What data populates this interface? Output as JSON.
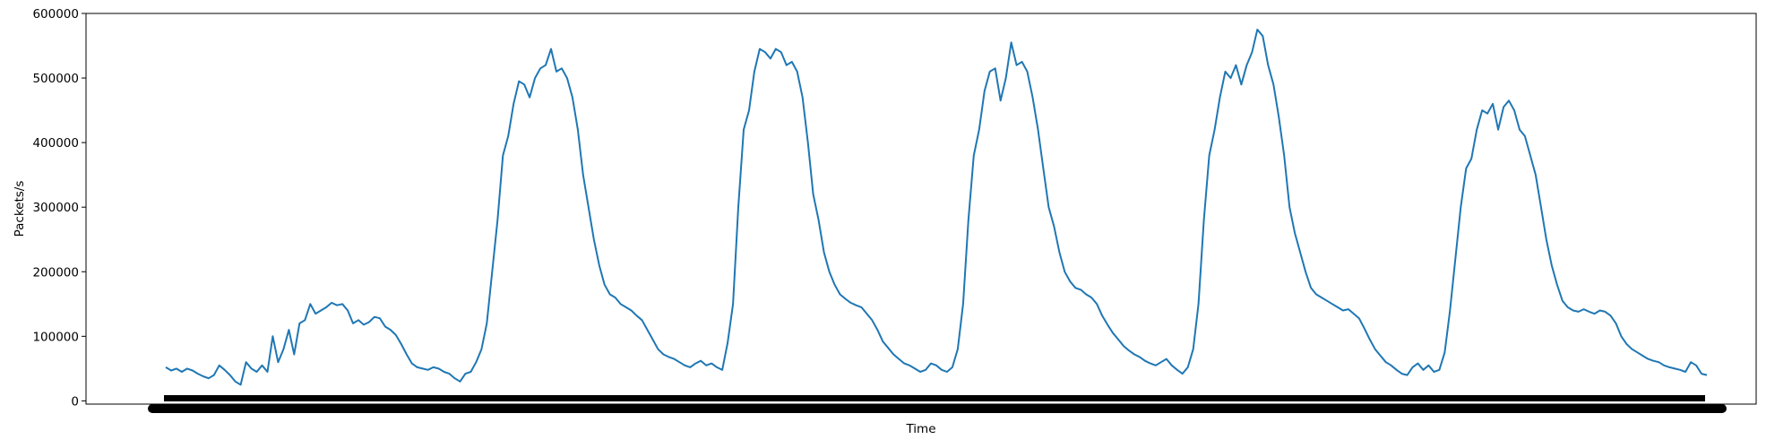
{
  "chart_data": {
    "type": "line",
    "title": "",
    "xlabel": "Time",
    "ylabel": "Packets/s",
    "ylim": [
      -5000,
      600000
    ],
    "yticks": [
      0,
      100000,
      200000,
      300000,
      400000,
      500000,
      600000
    ],
    "ytick_labels": [
      "0",
      "100000",
      "200000",
      "300000",
      "400000",
      "500000",
      "600000"
    ],
    "xtick_labels_legible": false,
    "grid": false,
    "legend": "none",
    "colors": {
      "series": "#1f77b4",
      "axes": "#000000",
      "background": "#ffffff"
    },
    "series": [
      {
        "index": [
          0,
          6,
          12,
          18,
          24,
          30,
          36,
          42,
          48,
          54,
          60,
          66,
          72,
          78,
          84,
          90,
          96,
          102,
          108,
          114,
          120,
          126,
          132,
          138,
          144,
          150,
          156,
          162,
          168,
          174,
          180,
          186,
          192,
          198,
          204,
          210,
          216,
          222,
          228,
          234,
          240,
          246,
          252,
          258,
          264,
          270,
          276,
          282,
          288,
          294,
          300,
          306,
          312,
          318,
          324,
          330,
          336,
          342,
          348,
          354,
          360,
          366,
          372,
          378,
          384,
          390,
          396,
          402,
          408,
          414,
          420,
          426,
          432,
          438,
          444,
          450,
          456,
          462,
          468,
          474,
          480,
          486,
          492,
          498,
          504,
          510,
          516,
          522,
          528,
          534,
          540,
          546,
          552,
          558,
          564,
          570,
          576,
          582,
          588,
          594,
          600,
          606,
          612,
          618,
          624,
          630,
          636,
          642,
          648,
          654,
          660,
          666,
          672,
          678,
          684,
          690,
          696,
          702,
          708,
          714,
          720,
          726,
          732,
          738,
          744,
          750,
          756,
          762,
          768,
          774,
          780,
          786,
          792,
          798,
          804,
          810,
          816,
          822,
          828,
          834,
          840,
          846,
          852,
          858,
          864,
          870,
          876,
          882,
          888,
          894,
          900,
          906,
          912,
          918,
          924,
          930,
          936,
          942,
          948,
          954,
          960,
          966,
          972,
          978,
          984,
          990,
          996,
          1002,
          1008,
          1014,
          1020,
          1026,
          1032,
          1038,
          1044,
          1050,
          1056,
          1062,
          1068,
          1074,
          1080,
          1086,
          1092,
          1098,
          1104,
          1110,
          1116,
          1122,
          1128,
          1134,
          1140,
          1146,
          1152,
          1158,
          1164,
          1170,
          1176,
          1182,
          1188,
          1194,
          1200,
          1206,
          1212,
          1218,
          1224,
          1230,
          1236,
          1242,
          1248,
          1254,
          1260,
          1266,
          1272,
          1278,
          1284,
          1290,
          1296,
          1302,
          1308,
          1314,
          1320,
          1326,
          1332,
          1338,
          1344,
          1350,
          1356,
          1362,
          1368,
          1374,
          1380,
          1386,
          1392,
          1398,
          1404,
          1410,
          1416,
          1422,
          1428,
          1434,
          1440,
          1446,
          1452,
          1458,
          1464,
          1470,
          1476,
          1482,
          1488,
          1494,
          1500,
          1506,
          1512,
          1518,
          1524,
          1530,
          1536,
          1542,
          1548,
          1554,
          1560,
          1566,
          1572,
          1578,
          1584,
          1590,
          1596,
          1602,
          1608,
          1614,
          1620,
          1626,
          1632,
          1638,
          1644,
          1650,
          1656,
          1662,
          1668,
          1674,
          1680,
          1686,
          1692,
          1698,
          1704,
          1710,
          1716,
          1722,
          1728
        ],
        "values": [
          52000,
          47000,
          50000,
          45000,
          50000,
          47000,
          42000,
          38000,
          35000,
          40000,
          55000,
          48000,
          40000,
          30000,
          25000,
          60000,
          50000,
          45000,
          55000,
          45000,
          100000,
          60000,
          80000,
          110000,
          72000,
          120000,
          125000,
          150000,
          135000,
          140000,
          145000,
          152000,
          148000,
          150000,
          140000,
          120000,
          125000,
          118000,
          122000,
          130000,
          128000,
          115000,
          110000,
          102000,
          88000,
          72000,
          58000,
          52000,
          50000,
          48000,
          52000,
          50000,
          45000,
          42000,
          35000,
          30000,
          42000,
          45000,
          60000,
          80000,
          120000,
          200000,
          280000,
          380000,
          410000,
          460000,
          495000,
          490000,
          470000,
          500000,
          515000,
          520000,
          545000,
          510000,
          515000,
          500000,
          470000,
          420000,
          350000,
          300000,
          250000,
          210000,
          180000,
          165000,
          160000,
          150000,
          145000,
          140000,
          132000,
          125000,
          110000,
          95000,
          80000,
          72000,
          68000,
          65000,
          60000,
          55000,
          52000,
          58000,
          62000,
          55000,
          58000,
          52000,
          48000,
          90000,
          150000,
          300000,
          420000,
          450000,
          510000,
          545000,
          540000,
          530000,
          545000,
          540000,
          520000,
          525000,
          510000,
          470000,
          400000,
          320000,
          280000,
          230000,
          200000,
          180000,
          165000,
          158000,
          152000,
          148000,
          145000,
          135000,
          125000,
          110000,
          92000,
          82000,
          72000,
          65000,
          58000,
          55000,
          50000,
          45000,
          48000,
          58000,
          55000,
          48000,
          45000,
          52000,
          80000,
          150000,
          280000,
          380000,
          420000,
          480000,
          510000,
          515000,
          465000,
          500000,
          555000,
          520000,
          525000,
          510000,
          470000,
          420000,
          360000,
          300000,
          270000,
          230000,
          200000,
          185000,
          175000,
          172000,
          165000,
          160000,
          150000,
          132000,
          118000,
          105000,
          95000,
          85000,
          78000,
          72000,
          68000,
          62000,
          58000,
          55000,
          60000,
          65000,
          55000,
          48000,
          42000,
          52000,
          80000,
          150000,
          280000,
          380000,
          420000,
          470000,
          510000,
          500000,
          520000,
          490000,
          520000,
          540000,
          575000,
          565000,
          520000,
          490000,
          440000,
          380000,
          300000,
          260000,
          230000,
          200000,
          175000,
          165000,
          160000,
          155000,
          150000,
          145000,
          140000,
          142000,
          135000,
          128000,
          112000,
          95000,
          80000,
          70000,
          60000,
          55000,
          48000,
          42000,
          40000,
          52000,
          58000,
          48000,
          55000,
          45000,
          48000,
          75000,
          140000,
          220000,
          300000,
          360000,
          375000,
          420000,
          450000,
          445000,
          460000,
          420000,
          455000,
          465000,
          450000,
          420000,
          410000,
          380000,
          350000,
          300000,
          250000,
          210000,
          180000,
          155000,
          145000,
          140000,
          138000,
          142000,
          138000,
          135000,
          140000,
          138000,
          132000,
          120000,
          100000,
          88000,
          80000,
          75000,
          70000,
          65000,
          62000,
          60000,
          55000,
          52000,
          50000,
          48000,
          45000,
          60000,
          55000,
          42000,
          40000,
          75000,
          80000,
          55000,
          95000,
          75000,
          120000,
          110000,
          150000,
          125000,
          140000,
          135000,
          140000,
          132000,
          128000,
          130000,
          120000,
          112000,
          108000,
          100000,
          102000,
          98000,
          90000,
          88000,
          92000,
          85000,
          78000,
          72000,
          62000,
          55000,
          50000
        ]
      }
    ]
  }
}
